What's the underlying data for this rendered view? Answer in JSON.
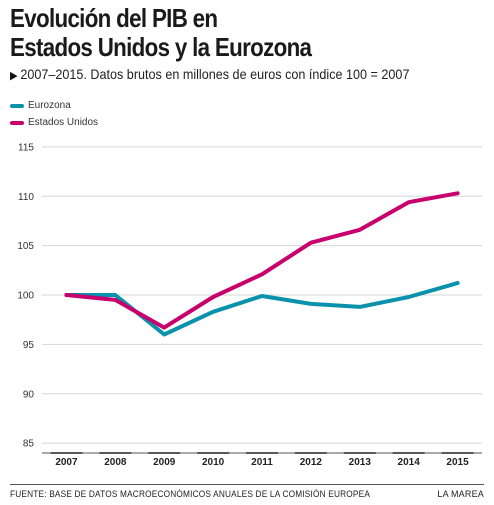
{
  "title_line1": "Evolución del PIB en",
  "title_line2": "Estados Unidos y la Eurozona",
  "subtitle": "2007–2015. Datos brutos en millones de euros con índice 100 = 2007",
  "footer": {
    "source": "FUENTE: BASE DE DATOS MACROECONÓMICOS ANUALES DE LA COMISIÓN EUROPEA",
    "credit": "LA MAREA"
  },
  "chart_data": {
    "type": "line",
    "categories": [
      "2007",
      "2008",
      "2009",
      "2010",
      "2011",
      "2012",
      "2013",
      "2014",
      "2015"
    ],
    "series": [
      {
        "name": "Eurozona",
        "color": "#0a92ad",
        "values": [
          100,
          100,
          96,
          98.3,
          99.9,
          99.1,
          98.8,
          99.8,
          101.2
        ]
      },
      {
        "name": "Estados Unidos",
        "color": "#c8006e",
        "values": [
          100,
          99.5,
          96.7,
          99.8,
          102.1,
          105.3,
          106.6,
          109.4,
          110.3
        ]
      }
    ],
    "ylim": [
      84,
      116
    ],
    "yticks": [
      85,
      90,
      95,
      100,
      105,
      110,
      115
    ],
    "grid": true,
    "legend_position": "top-left"
  }
}
